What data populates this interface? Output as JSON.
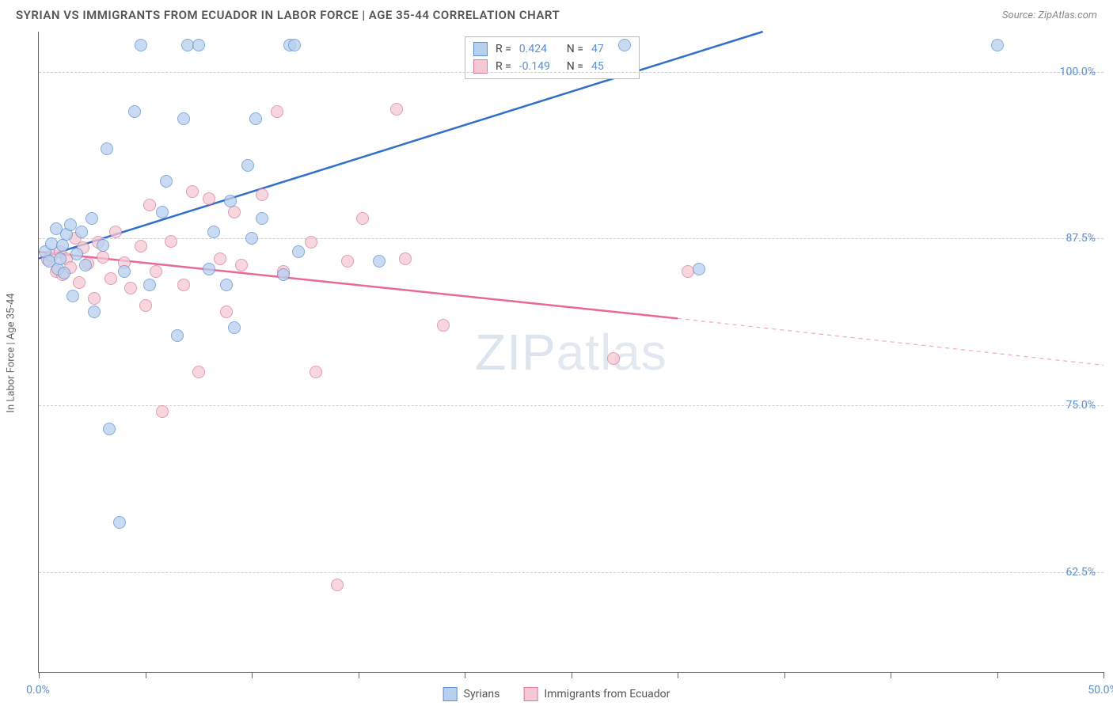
{
  "header": {
    "title": "SYRIAN VS IMMIGRANTS FROM ECUADOR IN LABOR FORCE | AGE 35-44 CORRELATION CHART",
    "source": "Source: ZipAtlas.com"
  },
  "chart": {
    "type": "scatter",
    "y_axis_label": "In Labor Force | Age 35-44",
    "watermark": "ZIPatlas",
    "xlim": [
      0,
      50
    ],
    "ylim": [
      55,
      103
    ],
    "x_ticks": [
      0,
      5,
      10,
      15,
      20,
      25,
      30,
      35,
      40,
      45,
      50
    ],
    "x_tick_labels": {
      "0": "0.0%",
      "50": "50.0%"
    },
    "y_gridlines": [
      62.5,
      75.0,
      87.5,
      100.0
    ],
    "y_tick_labels": [
      "62.5%",
      "75.0%",
      "87.5%",
      "100.0%"
    ],
    "colors": {
      "series1_fill": "#b7d0ee",
      "series1_stroke": "#5b8fd6",
      "series2_fill": "#f5c9d3",
      "series2_stroke": "#e07a9a",
      "grid": "#d0d0d0",
      "axis": "#666666",
      "tick_text": "#5b8fd6"
    },
    "marker_radius": 8,
    "marker_opacity": 0.75,
    "legend": {
      "series1": "Syrians",
      "series2": "Immigrants from Ecuador"
    },
    "stats": {
      "series1": {
        "R": "0.424",
        "N": "47"
      },
      "series2": {
        "R": "-0.149",
        "N": "45"
      }
    },
    "trend_lines": {
      "series1": {
        "x1": 0,
        "y1": 86.0,
        "x2": 34,
        "y2": 103.0,
        "color": "#2f6fd0",
        "width": 2.5,
        "dash": "none"
      },
      "series2_solid": {
        "x1": 0,
        "y1": 86.5,
        "x2": 30,
        "y2": 81.5,
        "color": "#e86a94",
        "width": 2.5
      },
      "series2_dash": {
        "x1": 30,
        "y1": 81.5,
        "x2": 50,
        "y2": 78.0,
        "color": "#f0a8bc",
        "width": 1.2
      }
    },
    "series1_points": [
      [
        0.3,
        86.5
      ],
      [
        0.5,
        85.8
      ],
      [
        0.6,
        87.1
      ],
      [
        0.8,
        88.2
      ],
      [
        0.9,
        85.2
      ],
      [
        1.0,
        86.0
      ],
      [
        1.1,
        87.0
      ],
      [
        1.2,
        84.9
      ],
      [
        1.3,
        87.8
      ],
      [
        1.5,
        88.5
      ],
      [
        1.6,
        83.2
      ],
      [
        1.8,
        86.3
      ],
      [
        2.0,
        88.0
      ],
      [
        2.2,
        85.5
      ],
      [
        2.5,
        89.0
      ],
      [
        2.6,
        82.0
      ],
      [
        3.0,
        87.0
      ],
      [
        3.2,
        94.2
      ],
      [
        3.3,
        73.2
      ],
      [
        3.8,
        66.2
      ],
      [
        4.0,
        85.0
      ],
      [
        4.5,
        97.0
      ],
      [
        4.8,
        102.0
      ],
      [
        5.2,
        84.0
      ],
      [
        5.8,
        89.5
      ],
      [
        6.0,
        91.8
      ],
      [
        6.5,
        80.2
      ],
      [
        6.8,
        96.5
      ],
      [
        7.0,
        102.0
      ],
      [
        7.5,
        102.0
      ],
      [
        8.0,
        85.2
      ],
      [
        8.2,
        88.0
      ],
      [
        8.8,
        84.0
      ],
      [
        9.0,
        90.3
      ],
      [
        9.2,
        80.8
      ],
      [
        9.8,
        93.0
      ],
      [
        10.0,
        87.5
      ],
      [
        10.2,
        96.5
      ],
      [
        10.5,
        89.0
      ],
      [
        11.5,
        84.8
      ],
      [
        11.8,
        102.0
      ],
      [
        12.0,
        102.0
      ],
      [
        12.2,
        86.5
      ],
      [
        16.0,
        85.8
      ],
      [
        27.5,
        102.0
      ],
      [
        31.0,
        85.2
      ],
      [
        45.0,
        102.0
      ]
    ],
    "series2_points": [
      [
        0.4,
        85.9
      ],
      [
        0.6,
        86.2
      ],
      [
        0.8,
        85.0
      ],
      [
        1.0,
        86.5
      ],
      [
        1.1,
        84.8
      ],
      [
        1.3,
        86.0
      ],
      [
        1.5,
        85.3
      ],
      [
        1.7,
        87.5
      ],
      [
        1.9,
        84.2
      ],
      [
        2.1,
        86.8
      ],
      [
        2.3,
        85.6
      ],
      [
        2.6,
        83.0
      ],
      [
        2.8,
        87.2
      ],
      [
        3.0,
        86.1
      ],
      [
        3.4,
        84.5
      ],
      [
        3.6,
        88.0
      ],
      [
        4.0,
        85.7
      ],
      [
        4.3,
        83.8
      ],
      [
        4.8,
        86.9
      ],
      [
        5.0,
        82.5
      ],
      [
        5.2,
        90.0
      ],
      [
        5.5,
        85.0
      ],
      [
        5.8,
        74.5
      ],
      [
        6.2,
        87.3
      ],
      [
        6.8,
        84.0
      ],
      [
        7.2,
        91.0
      ],
      [
        7.5,
        77.5
      ],
      [
        8.0,
        90.5
      ],
      [
        8.5,
        86.0
      ],
      [
        8.8,
        82.0
      ],
      [
        9.2,
        89.5
      ],
      [
        9.5,
        85.5
      ],
      [
        10.5,
        90.8
      ],
      [
        11.2,
        97.0
      ],
      [
        11.5,
        85.0
      ],
      [
        12.8,
        87.2
      ],
      [
        13.0,
        77.5
      ],
      [
        14.0,
        61.5
      ],
      [
        14.5,
        85.8
      ],
      [
        15.2,
        89.0
      ],
      [
        16.8,
        97.2
      ],
      [
        17.2,
        86.0
      ],
      [
        19.0,
        81.0
      ],
      [
        27.0,
        78.5
      ],
      [
        30.5,
        85.0
      ]
    ]
  }
}
